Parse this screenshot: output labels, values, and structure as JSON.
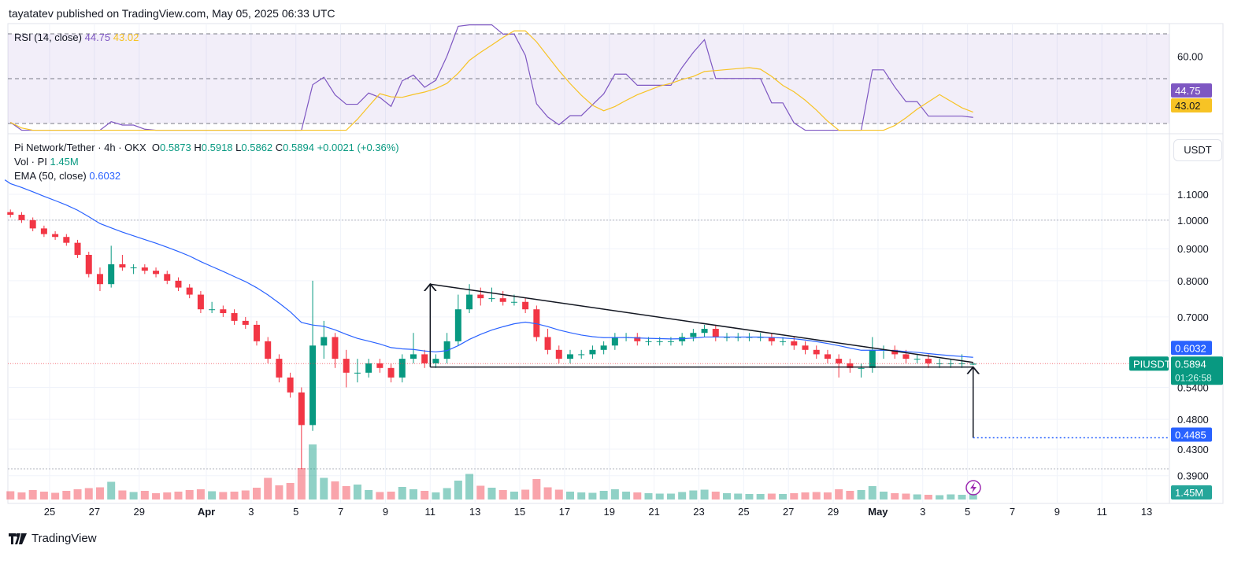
{
  "header": {
    "published": "tayatatev published on TradingView.com, May 05, 2025 06:33 UTC"
  },
  "rsi_legend": {
    "label": "RSI (14, close)",
    "rsi": "44.75",
    "ma": "43.02"
  },
  "legend": {
    "symbol": "Pi Network/Tether · 4h · OKX",
    "o_label": "O",
    "o": "0.5873",
    "h_label": "H",
    "h": "0.5918",
    "l_label": "L",
    "l": "0.5862",
    "c_label": "C",
    "c": "0.5894",
    "change": "+0.0021 (+0.36%)",
    "vol_label": "Vol · PI",
    "vol": "1.45M",
    "ema_label": "EMA (50, close)",
    "ema": "0.6032"
  },
  "axis": {
    "currency": "USDT",
    "price_ticks": [
      "1.1000",
      "1.0000",
      "0.9000",
      "0.8000",
      "0.7000",
      "0.5400",
      "0.4800",
      "0.4300",
      "0.3900"
    ],
    "rsi_ticks": [
      "60.00"
    ]
  },
  "badges": {
    "rsi": "44.75",
    "rsi_ma": "43.02",
    "ema": "0.6032",
    "symbol": "PIUSDT",
    "price": "0.5894",
    "countdown": "01:26:58",
    "target": "0.4485",
    "volume": "1.45M"
  },
  "footer": {
    "brand": "TradingView"
  },
  "colors": {
    "up": "#089981",
    "down": "#f23645",
    "ema": "#2962ff",
    "rsi": "#7e57c2",
    "rsi_ma": "#f7c325",
    "rsi_band": "#7e57c2"
  },
  "chart_data": {
    "type": "candlestick",
    "scale": "log",
    "x_ticks": [
      {
        "label": "25",
        "date": "03-25"
      },
      {
        "label": "27",
        "date": "03-27"
      },
      {
        "label": "29",
        "date": "03-29"
      },
      {
        "label": "Apr",
        "date": "04-01"
      },
      {
        "label": "3",
        "date": "04-03"
      },
      {
        "label": "5",
        "date": "04-05"
      },
      {
        "label": "7",
        "date": "04-07"
      },
      {
        "label": "9",
        "date": "04-09"
      },
      {
        "label": "11",
        "date": "04-11"
      },
      {
        "label": "13",
        "date": "04-13"
      },
      {
        "label": "15",
        "date": "04-15"
      },
      {
        "label": "17",
        "date": "04-17"
      },
      {
        "label": "19",
        "date": "04-19"
      },
      {
        "label": "21",
        "date": "04-21"
      },
      {
        "label": "23",
        "date": "04-23"
      },
      {
        "label": "25",
        "date": "04-25"
      },
      {
        "label": "27",
        "date": "04-27"
      },
      {
        "label": "29",
        "date": "04-29"
      },
      {
        "label": "May",
        "date": "05-01"
      },
      {
        "label": "3",
        "date": "05-03"
      },
      {
        "label": "5",
        "date": "05-05"
      },
      {
        "label": "7",
        "date": "05-07"
      },
      {
        "label": "9",
        "date": "05-09"
      },
      {
        "label": "11",
        "date": "05-11"
      },
      {
        "label": "13",
        "date": "05-13"
      }
    ],
    "ylim": [
      0.39,
      1.1
    ],
    "rsi_levels": [
      70,
      50,
      30
    ],
    "candles": [
      [
        "03-23 00",
        1.03,
        1.04,
        1.01,
        1.02,
        2.1
      ],
      [
        "03-23 12",
        1.02,
        1.03,
        0.99,
        1.0,
        1.8
      ],
      [
        "03-24 00",
        1.0,
        1.01,
        0.96,
        0.97,
        2.4
      ],
      [
        "03-24 12",
        0.97,
        0.98,
        0.94,
        0.95,
        2.0
      ],
      [
        "03-25 00",
        0.95,
        0.96,
        0.93,
        0.94,
        1.7
      ],
      [
        "03-25 12",
        0.94,
        0.95,
        0.91,
        0.92,
        2.2
      ],
      [
        "03-26 00",
        0.92,
        0.93,
        0.87,
        0.88,
        2.6
      ],
      [
        "03-26 12",
        0.88,
        0.89,
        0.81,
        0.82,
        2.9
      ],
      [
        "03-27 00",
        0.82,
        0.84,
        0.77,
        0.79,
        3.1
      ],
      [
        "03-27 12",
        0.79,
        0.91,
        0.78,
        0.85,
        4.5
      ],
      [
        "03-28 00",
        0.85,
        0.88,
        0.83,
        0.84,
        2.3
      ],
      [
        "03-28 12",
        0.84,
        0.85,
        0.82,
        0.84,
        1.9
      ],
      [
        "03-29 00",
        0.84,
        0.85,
        0.82,
        0.83,
        2.2
      ],
      [
        "03-29 12",
        0.83,
        0.84,
        0.81,
        0.82,
        1.6
      ],
      [
        "03-30 00",
        0.82,
        0.83,
        0.79,
        0.8,
        1.8
      ],
      [
        "03-30 12",
        0.8,
        0.81,
        0.77,
        0.78,
        2.0
      ],
      [
        "03-31 00",
        0.78,
        0.79,
        0.75,
        0.76,
        2.4
      ],
      [
        "03-31 12",
        0.76,
        0.77,
        0.71,
        0.72,
        2.6
      ],
      [
        "04-01 00",
        0.72,
        0.74,
        0.71,
        0.72,
        2.1
      ],
      [
        "04-01 12",
        0.72,
        0.73,
        0.7,
        0.71,
        1.9
      ],
      [
        "04-02 00",
        0.71,
        0.72,
        0.68,
        0.69,
        2.0
      ],
      [
        "04-02 12",
        0.69,
        0.7,
        0.67,
        0.68,
        2.3
      ],
      [
        "04-03 00",
        0.68,
        0.69,
        0.63,
        0.64,
        3.0
      ],
      [
        "04-03 12",
        0.64,
        0.65,
        0.59,
        0.6,
        5.5
      ],
      [
        "04-04 00",
        0.6,
        0.61,
        0.55,
        0.56,
        3.6
      ],
      [
        "04-04 12",
        0.56,
        0.57,
        0.52,
        0.53,
        4.2
      ],
      [
        "04-05 00",
        0.53,
        0.54,
        0.4,
        0.47,
        8.0
      ],
      [
        "04-05 12",
        0.47,
        0.8,
        0.46,
        0.63,
        14.0
      ],
      [
        "04-06 00",
        0.63,
        0.69,
        0.6,
        0.65,
        5.5
      ],
      [
        "04-06 12",
        0.65,
        0.66,
        0.58,
        0.6,
        4.6
      ],
      [
        "04-07 00",
        0.6,
        0.62,
        0.54,
        0.57,
        3.4
      ],
      [
        "04-07 12",
        0.57,
        0.6,
        0.55,
        0.57,
        3.8
      ],
      [
        "04-08 00",
        0.57,
        0.6,
        0.56,
        0.59,
        2.4
      ],
      [
        "04-08 12",
        0.59,
        0.6,
        0.57,
        0.58,
        1.9
      ],
      [
        "04-09 00",
        0.58,
        0.59,
        0.55,
        0.56,
        2.0
      ],
      [
        "04-09 12",
        0.56,
        0.61,
        0.55,
        0.6,
        3.2
      ],
      [
        "04-10 00",
        0.6,
        0.66,
        0.59,
        0.61,
        2.6
      ],
      [
        "04-10 12",
        0.61,
        0.62,
        0.58,
        0.59,
        2.2
      ],
      [
        "04-11 00",
        0.59,
        0.61,
        0.58,
        0.6,
        1.8
      ],
      [
        "04-11 12",
        0.6,
        0.66,
        0.59,
        0.64,
        2.9
      ],
      [
        "04-12 00",
        0.64,
        0.76,
        0.63,
        0.72,
        4.8
      ],
      [
        "04-12 12",
        0.72,
        0.79,
        0.71,
        0.76,
        6.5
      ],
      [
        "04-13 00",
        0.76,
        0.78,
        0.73,
        0.75,
        3.5
      ],
      [
        "04-13 12",
        0.75,
        0.78,
        0.74,
        0.75,
        3.0
      ],
      [
        "04-14 00",
        0.75,
        0.77,
        0.73,
        0.74,
        2.4
      ],
      [
        "04-14 12",
        0.74,
        0.76,
        0.73,
        0.74,
        2.0
      ],
      [
        "04-15 00",
        0.74,
        0.75,
        0.71,
        0.72,
        2.5
      ],
      [
        "04-15 12",
        0.72,
        0.73,
        0.64,
        0.65,
        5.2
      ],
      [
        "04-16 00",
        0.65,
        0.67,
        0.61,
        0.62,
        3.1
      ],
      [
        "04-16 12",
        0.62,
        0.63,
        0.59,
        0.6,
        2.5
      ],
      [
        "04-17 00",
        0.6,
        0.62,
        0.59,
        0.61,
        2.0
      ],
      [
        "04-17 12",
        0.61,
        0.62,
        0.6,
        0.61,
        1.8
      ],
      [
        "04-18 00",
        0.61,
        0.63,
        0.6,
        0.62,
        1.7
      ],
      [
        "04-18 12",
        0.62,
        0.64,
        0.61,
        0.63,
        2.2
      ],
      [
        "04-19 00",
        0.63,
        0.66,
        0.62,
        0.65,
        2.6
      ],
      [
        "04-19 12",
        0.65,
        0.66,
        0.64,
        0.65,
        2.0
      ],
      [
        "04-20 00",
        0.65,
        0.66,
        0.63,
        0.64,
        1.8
      ],
      [
        "04-20 12",
        0.64,
        0.65,
        0.63,
        0.64,
        1.6
      ],
      [
        "04-21 00",
        0.64,
        0.65,
        0.63,
        0.64,
        1.5
      ],
      [
        "04-21 12",
        0.64,
        0.65,
        0.63,
        0.64,
        1.5
      ],
      [
        "04-22 00",
        0.64,
        0.66,
        0.63,
        0.65,
        1.9
      ],
      [
        "04-22 12",
        0.65,
        0.67,
        0.64,
        0.66,
        2.3
      ],
      [
        "04-23 00",
        0.66,
        0.68,
        0.65,
        0.67,
        2.5
      ],
      [
        "04-23 12",
        0.67,
        0.68,
        0.64,
        0.65,
        2.0
      ],
      [
        "04-24 00",
        0.65,
        0.66,
        0.64,
        0.65,
        1.6
      ],
      [
        "04-24 12",
        0.65,
        0.66,
        0.64,
        0.65,
        1.5
      ],
      [
        "04-25 00",
        0.65,
        0.66,
        0.64,
        0.65,
        1.4
      ],
      [
        "04-25 12",
        0.65,
        0.66,
        0.64,
        0.65,
        1.4
      ],
      [
        "04-26 00",
        0.65,
        0.66,
        0.63,
        0.64,
        1.5
      ],
      [
        "04-26 12",
        0.64,
        0.65,
        0.63,
        0.64,
        1.4
      ],
      [
        "04-27 00",
        0.64,
        0.65,
        0.62,
        0.63,
        1.6
      ],
      [
        "04-27 12",
        0.63,
        0.64,
        0.61,
        0.62,
        1.8
      ],
      [
        "04-28 00",
        0.62,
        0.63,
        0.6,
        0.61,
        1.9
      ],
      [
        "04-28 12",
        0.61,
        0.62,
        0.59,
        0.6,
        1.8
      ],
      [
        "04-29 00",
        0.6,
        0.61,
        0.56,
        0.59,
        2.6
      ],
      [
        "04-29 12",
        0.59,
        0.6,
        0.57,
        0.58,
        2.2
      ],
      [
        "04-30 00",
        0.58,
        0.59,
        0.56,
        0.58,
        2.4
      ],
      [
        "04-30 12",
        0.58,
        0.65,
        0.57,
        0.62,
        3.4
      ],
      [
        "05-01 00",
        0.62,
        0.63,
        0.6,
        0.62,
        2.0
      ],
      [
        "05-01 12",
        0.62,
        0.63,
        0.6,
        0.61,
        1.6
      ],
      [
        "05-02 00",
        0.61,
        0.62,
        0.59,
        0.6,
        1.5
      ],
      [
        "05-02 12",
        0.6,
        0.61,
        0.59,
        0.6,
        1.3
      ],
      [
        "05-03 00",
        0.6,
        0.61,
        0.58,
        0.59,
        1.2
      ],
      [
        "05-03 12",
        0.59,
        0.6,
        0.58,
        0.59,
        1.1
      ],
      [
        "05-04 00",
        0.59,
        0.6,
        0.58,
        0.59,
        1.3
      ],
      [
        "05-04 12",
        0.59,
        0.61,
        0.58,
        0.59,
        1.2
      ],
      [
        "05-05 00",
        0.5873,
        0.5918,
        0.5862,
        0.5894,
        1.45
      ]
    ],
    "drawings": [
      {
        "type": "trendline",
        "from": [
          "04-11 00",
          0.79
        ],
        "to": [
          "05-05 06",
          0.592
        ]
      },
      {
        "type": "trendline",
        "from": [
          "04-11 00",
          0.582
        ],
        "to": [
          "05-05 06",
          0.582
        ]
      },
      {
        "type": "arrow",
        "from": [
          "04-11 00",
          0.582
        ],
        "to": [
          "04-11 00",
          0.79
        ]
      },
      {
        "type": "arrow",
        "from": [
          "05-05 06",
          0.4485
        ],
        "to": [
          "05-05 06",
          0.582
        ]
      },
      {
        "type": "hline_dotted",
        "from": [
          "05-05 06",
          0.4485
        ],
        "color": "#2962ff"
      }
    ],
    "reference_lines": [
      1.0,
      0.4
    ]
  }
}
